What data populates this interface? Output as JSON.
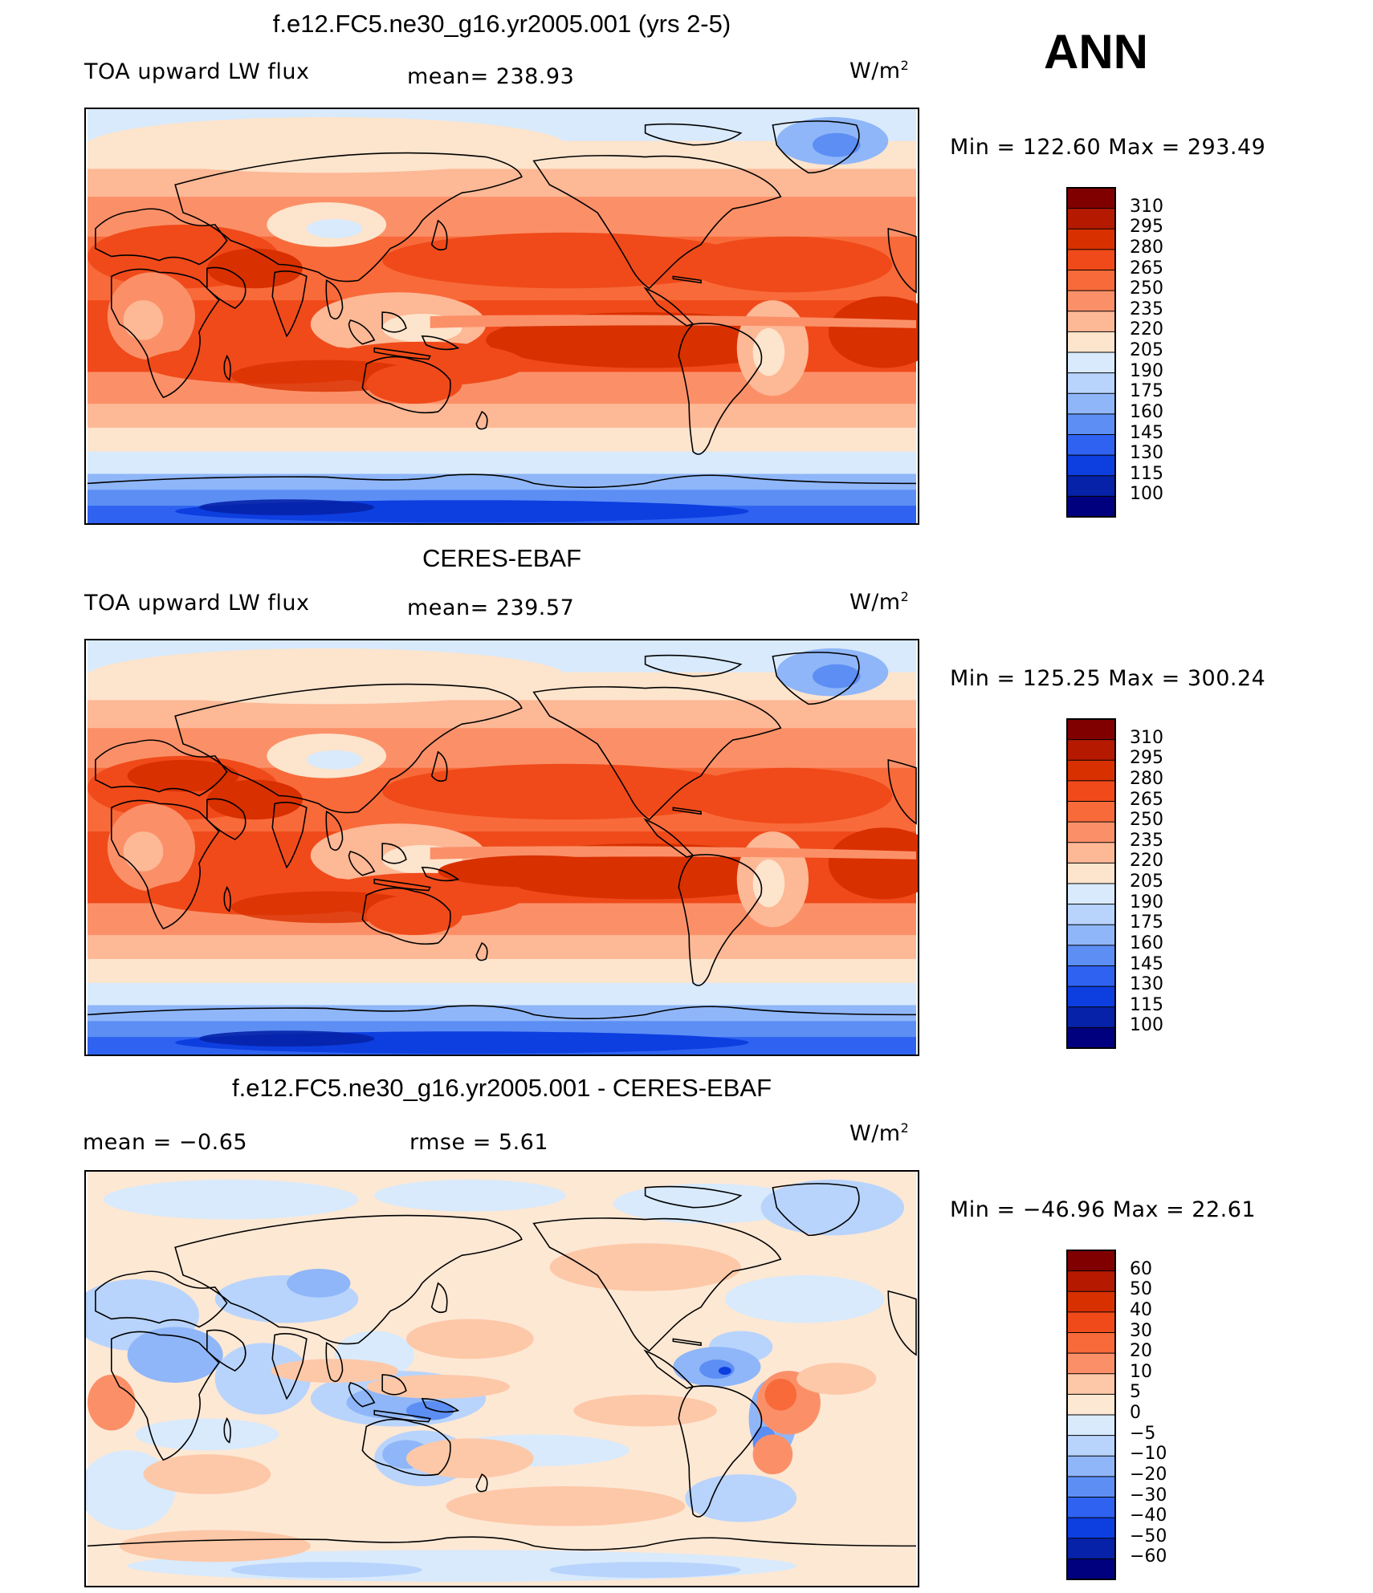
{
  "season": "ANN",
  "panels": [
    {
      "title": "f.e12.FC5.ne30_g16.yr2005.001 (yrs 2-5)",
      "left_label": "TOA upward LW flux",
      "mid_label": "mean= 238.93",
      "units": "W/m",
      "units_sup": "2",
      "minmax": "Min = 122.60 Max = 293.49",
      "colorbar_levels": [
        "310",
        "295",
        "280",
        "265",
        "250",
        "235",
        "220",
        "205",
        "190",
        "175",
        "160",
        "145",
        "130",
        "115",
        "100"
      ],
      "variant": "model"
    },
    {
      "title": "CERES-EBAF",
      "left_label": "TOA upward LW flux",
      "mid_label": "mean= 239.57",
      "units": "W/m",
      "units_sup": "2",
      "minmax": "Min = 125.25 Max = 300.24",
      "colorbar_levels": [
        "310",
        "295",
        "280",
        "265",
        "250",
        "235",
        "220",
        "205",
        "190",
        "175",
        "160",
        "145",
        "130",
        "115",
        "100"
      ],
      "variant": "obs"
    },
    {
      "title": "f.e12.FC5.ne30_g16.yr2005.001 - CERES-EBAF",
      "left_label": "mean =   −0.65",
      "mid_label": "rmse =    5.61",
      "units": "W/m",
      "units_sup": "2",
      "minmax": "Min = −46.96 Max =  22.61",
      "colorbar_levels": [
        "60",
        "50",
        "40",
        "30",
        "20",
        "10",
        "5",
        "0",
        "−5",
        "−10",
        "−20",
        "−30",
        "−40",
        "−50",
        "−60"
      ],
      "variant": "diff"
    }
  ],
  "colors": {
    "abs_scale": [
      "#800000",
      "#b51a00",
      "#d93000",
      "#f04a1a",
      "#f86a3a",
      "#fb9068",
      "#fdb896",
      "#fde4cc",
      "#d8eafc",
      "#b8d4fc",
      "#8fb6f8",
      "#5c8ef4",
      "#2f62f0",
      "#0d3ee0",
      "#0522a8",
      "#00007e"
    ],
    "diff_scale": [
      "#800000",
      "#b51a00",
      "#d93000",
      "#f04a1a",
      "#f86a3a",
      "#fb9068",
      "#fdc8a8",
      "#fde8d4",
      "#d8eafc",
      "#b8d4fc",
      "#8fb6f8",
      "#5c8ef4",
      "#2f62f0",
      "#0d3ee0",
      "#0522a8",
      "#00007e"
    ]
  },
  "chart_data": [
    {
      "type": "heatmap",
      "title": "f.e12.FC5.ne30_g16.yr2005.001 (yrs 2-5)",
      "variable": "TOA upward LW flux",
      "units": "W/m2",
      "mean": 238.93,
      "min": 122.6,
      "max": 293.49,
      "levels": [
        100,
        115,
        130,
        145,
        160,
        175,
        190,
        205,
        220,
        235,
        250,
        265,
        280,
        295,
        310
      ],
      "x": "longitude",
      "y": "latitude"
    },
    {
      "type": "heatmap",
      "title": "CERES-EBAF",
      "variable": "TOA upward LW flux",
      "units": "W/m2",
      "mean": 239.57,
      "min": 125.25,
      "max": 300.24,
      "levels": [
        100,
        115,
        130,
        145,
        160,
        175,
        190,
        205,
        220,
        235,
        250,
        265,
        280,
        295,
        310
      ],
      "x": "longitude",
      "y": "latitude"
    },
    {
      "type": "heatmap",
      "title": "f.e12.FC5.ne30_g16.yr2005.001 - CERES-EBAF",
      "units": "W/m2",
      "mean": -0.65,
      "rmse": 5.61,
      "min": -46.96,
      "max": 22.61,
      "levels": [
        -60,
        -50,
        -40,
        -30,
        -20,
        -10,
        -5,
        0,
        5,
        10,
        20,
        30,
        40,
        50,
        60
      ],
      "x": "longitude",
      "y": "latitude"
    }
  ]
}
